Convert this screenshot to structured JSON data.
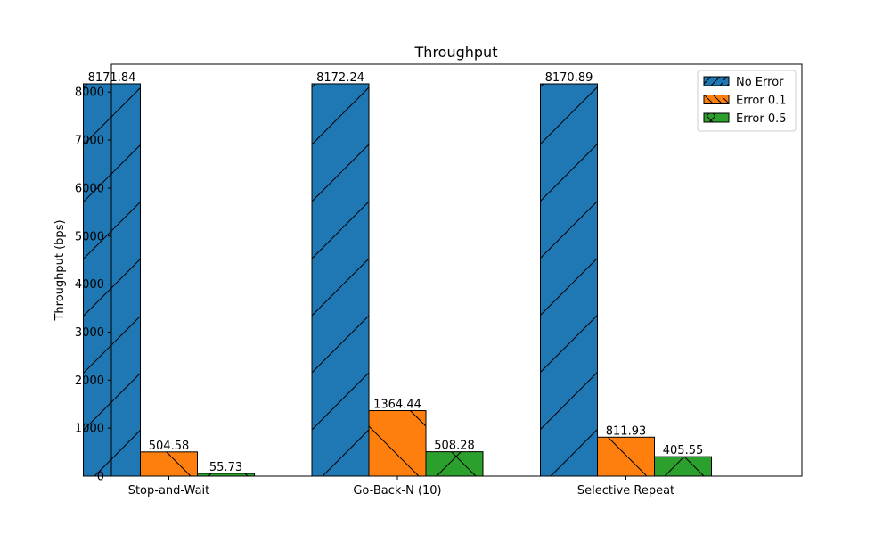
{
  "chart_data": {
    "type": "bar",
    "title": "Throughput",
    "xlabel": "",
    "ylabel": "Throughput (bps)",
    "categories": [
      "Stop-and-Wait",
      "Go-Back-N (10)",
      "Selective Repeat"
    ],
    "series": [
      {
        "name": "No Error",
        "color": "#1f77b4",
        "hatch": "forward-diagonal",
        "values": [
          8171.84,
          8172.24,
          8170.89
        ],
        "labels": [
          "8171.84",
          "8172.24",
          "8170.89"
        ]
      },
      {
        "name": "Error 0.1",
        "color": "#ff7f0e",
        "hatch": "back-diagonal",
        "values": [
          504.58,
          1364.44,
          811.93
        ],
        "labels": [
          "504.58",
          "1364.44",
          "811.93"
        ]
      },
      {
        "name": "Error 0.5",
        "color": "#2ca02c",
        "hatch": "cross",
        "values": [
          55.73,
          508.28,
          405.55
        ],
        "labels": [
          "55.73",
          "508.28",
          "405.55"
        ]
      }
    ],
    "ylim": [
      0,
      8580
    ],
    "yticks": [
      0,
      1000,
      2000,
      3000,
      4000,
      5000,
      6000,
      7000,
      8000
    ],
    "ytick_labels": [
      "0",
      "1000",
      "2000",
      "3000",
      "4000",
      "5000",
      "6000",
      "7000",
      "8000"
    ],
    "grid": false,
    "legend_position": "top-right"
  }
}
